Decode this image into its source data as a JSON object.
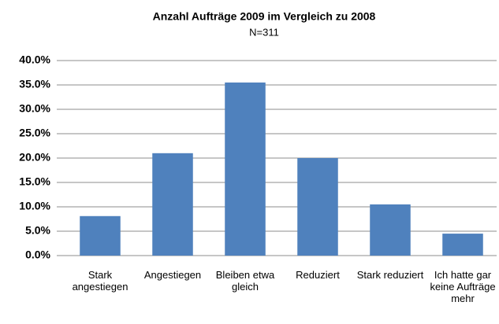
{
  "chart_data": {
    "type": "bar",
    "title": "Anzahl Aufträge 2009 im Vergleich zu 2008",
    "subtitle": "N=311",
    "categories": [
      "Stark angestiegen",
      "Angestiegen",
      "Bleiben etwa gleich",
      "Reduziert",
      "Stark reduziert",
      "Ich hatte gar keine Aufträge mehr"
    ],
    "values": [
      8.1,
      21.0,
      35.5,
      20.0,
      10.5,
      4.5
    ],
    "color": "#4f81bd",
    "ylim": [
      0,
      40
    ],
    "yticks": [
      {
        "value": 0,
        "label": "0.0%"
      },
      {
        "value": 5,
        "label": "5.0%"
      },
      {
        "value": 10,
        "label": "10.0%"
      },
      {
        "value": 15,
        "label": "15.0%"
      },
      {
        "value": 20,
        "label": "20.0%"
      },
      {
        "value": 25,
        "label": "25.0%"
      },
      {
        "value": 30,
        "label": "30.0%"
      },
      {
        "value": 35,
        "label": "35.0%"
      },
      {
        "value": 40,
        "label": "40.0%"
      }
    ],
    "grid": true
  }
}
